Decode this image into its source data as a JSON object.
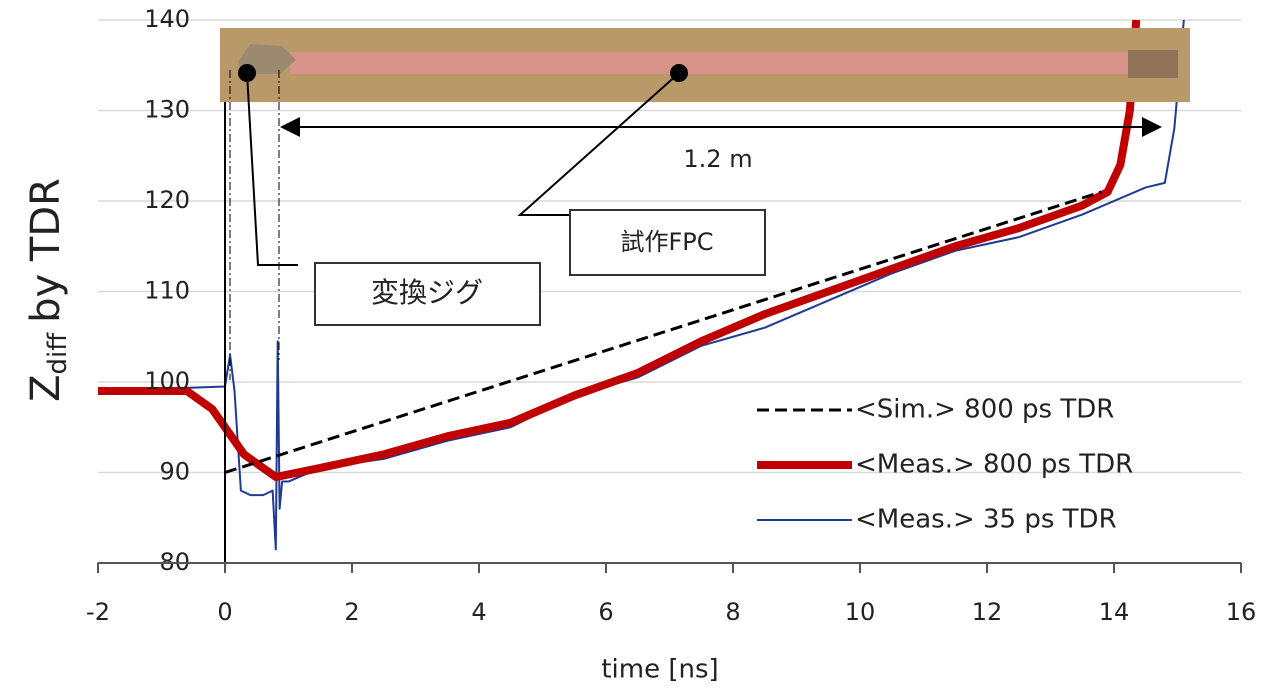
{
  "chart_data": {
    "type": "line",
    "x_label": "time [ns]",
    "y_label": {
      "main": "Z",
      "sub": "diff",
      "rest": "by TDR"
    },
    "xlim": [
      -2,
      16
    ],
    "xticks": [
      -2,
      0,
      2,
      4,
      6,
      8,
      10,
      12,
      14,
      16
    ],
    "ylim": [
      80,
      140
    ],
    "yticks": [
      80,
      90,
      100,
      110,
      120,
      130,
      140
    ],
    "grid": true,
    "legend": "lower right",
    "annotations": {
      "length": "1.2 m",
      "fpc": "試作FPC",
      "jig": "変換ジグ"
    },
    "series": [
      {
        "name": "<Sim.> 800 ps TDR",
        "color": "#000000",
        "style": "dashed",
        "width": 3,
        "x": [
          0,
          13.8
        ],
        "values": [
          90,
          121
        ]
      },
      {
        "name": "<Meas.> 800 ps TDR",
        "color": "#c00000",
        "style": "solid",
        "width": 8,
        "x": [
          -2,
          -0.6,
          -0.2,
          0.3,
          0.8,
          1.5,
          2.5,
          3.5,
          4.5,
          5.5,
          6.5,
          7.5,
          8.5,
          9.5,
          10.5,
          11.5,
          12.5,
          13.5,
          13.9,
          14.1,
          14.25,
          14.35
        ],
        "values": [
          99,
          99,
          97,
          92,
          89.5,
          90.5,
          92,
          94,
          95.5,
          98.5,
          101,
          104.5,
          107.5,
          110,
          112.5,
          115,
          117,
          119.5,
          121,
          124,
          130,
          140
        ]
      },
      {
        "name": "<Meas.> 35 ps TDR",
        "color": "#1f3a93",
        "style": "solid",
        "width": 2,
        "x": [
          -2,
          0,
          0.08,
          0.15,
          0.25,
          0.4,
          0.6,
          0.75,
          0.8,
          0.83,
          0.86,
          0.9,
          1,
          1.5,
          2.5,
          3.5,
          4.5,
          5.5,
          6.5,
          7.5,
          8.5,
          9.5,
          10.5,
          11.5,
          12.5,
          13.5,
          14.5,
          14.8,
          14.95,
          15.1
        ],
        "values": [
          99,
          99.5,
          103,
          99,
          88,
          87.5,
          87.5,
          88,
          81.5,
          104.5,
          86,
          89,
          89,
          90.5,
          91.5,
          93.5,
          95,
          98.5,
          100.5,
          104,
          106,
          109,
          112,
          114.5,
          116,
          118.5,
          121.5,
          122,
          128,
          140
        ]
      }
    ]
  }
}
